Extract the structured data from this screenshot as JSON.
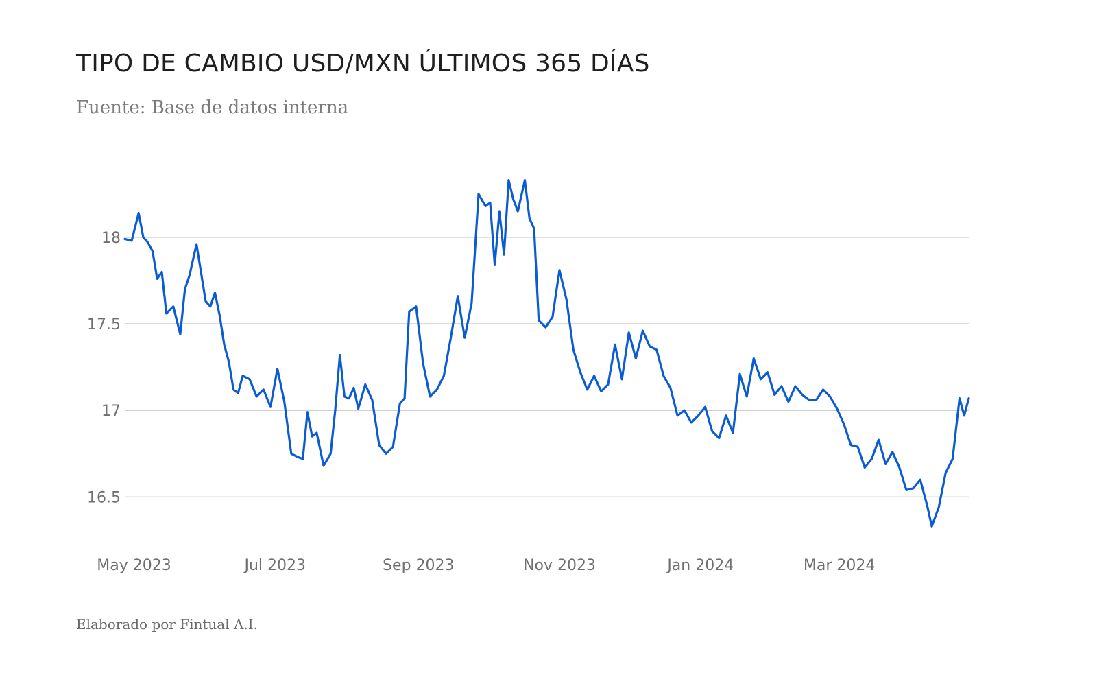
{
  "header": {
    "title": "TIPO DE CAMBIO USD/MXN ÚLTIMOS 365 DÍAS",
    "subtitle": "Fuente: Base de datos interna"
  },
  "footer": {
    "credit": "Elaborado por Fintual A.I."
  },
  "colors": {
    "line": "#0b5bd3",
    "grid": "#cfcfcf",
    "tick_text": "#6f6f6f"
  },
  "chart_data": {
    "type": "line",
    "title": "TIPO DE CAMBIO USD/MXN ÚLTIMOS 365 DÍAS",
    "xlabel": "",
    "ylabel": "",
    "grid": true,
    "ylim": [
      16.24,
      18.38
    ],
    "y_ticks": [
      16.5,
      17,
      17.5,
      18
    ],
    "y_tick_labels": [
      "16.5",
      "17",
      "17.5",
      "18"
    ],
    "x_range": [
      "2023-04-27",
      "2024-04-26"
    ],
    "x_ticks": [
      "2023-05-01",
      "2023-07-01",
      "2023-09-01",
      "2023-11-01",
      "2024-01-01",
      "2024-03-01"
    ],
    "x_tick_labels": [
      "May 2023",
      "Jul 2023",
      "Sep 2023",
      "Nov 2023",
      "Jan 2024",
      "Mar 2024"
    ],
    "series": [
      {
        "x": [
          "2023-04-27",
          "2023-04-30",
          "2023-05-03",
          "2023-05-05",
          "2023-05-07",
          "2023-05-09",
          "2023-05-11",
          "2023-05-13",
          "2023-05-15",
          "2023-05-18",
          "2023-05-21",
          "2023-05-23",
          "2023-05-25",
          "2023-05-28",
          "2023-06-01",
          "2023-06-03",
          "2023-06-05",
          "2023-06-07",
          "2023-06-09",
          "2023-06-11",
          "2023-06-13",
          "2023-06-15",
          "2023-06-17",
          "2023-06-20",
          "2023-06-23",
          "2023-06-26",
          "2023-06-29",
          "2023-07-02",
          "2023-07-05",
          "2023-07-08",
          "2023-07-11",
          "2023-07-13",
          "2023-07-15",
          "2023-07-17",
          "2023-07-19",
          "2023-07-22",
          "2023-07-25",
          "2023-07-27",
          "2023-07-29",
          "2023-07-31",
          "2023-08-02",
          "2023-08-04",
          "2023-08-06",
          "2023-08-09",
          "2023-08-12",
          "2023-08-15",
          "2023-08-18",
          "2023-08-21",
          "2023-08-24",
          "2023-08-26",
          "2023-08-28",
          "2023-08-31",
          "2023-09-03",
          "2023-09-06",
          "2023-09-09",
          "2023-09-12",
          "2023-09-15",
          "2023-09-18",
          "2023-09-21",
          "2023-09-24",
          "2023-09-27",
          "2023-09-30",
          "2023-10-02",
          "2023-10-04",
          "2023-10-06",
          "2023-10-08",
          "2023-10-10",
          "2023-10-12",
          "2023-10-14",
          "2023-10-17",
          "2023-10-19",
          "2023-10-21",
          "2023-10-23",
          "2023-10-26",
          "2023-10-29",
          "2023-11-01",
          "2023-11-04",
          "2023-11-07",
          "2023-11-10",
          "2023-11-13",
          "2023-11-16",
          "2023-11-19",
          "2023-11-22",
          "2023-11-25",
          "2023-11-28",
          "2023-12-01",
          "2023-12-04",
          "2023-12-07",
          "2023-12-10",
          "2023-12-13",
          "2023-12-16",
          "2023-12-19",
          "2023-12-22",
          "2023-12-25",
          "2023-12-28",
          "2023-12-31",
          "2024-01-03",
          "2024-01-06",
          "2024-01-09",
          "2024-01-12",
          "2024-01-15",
          "2024-01-18",
          "2024-01-21",
          "2024-01-24",
          "2024-01-27",
          "2024-01-30",
          "2024-02-02",
          "2024-02-05",
          "2024-02-08",
          "2024-02-11",
          "2024-02-14",
          "2024-02-17",
          "2024-02-20",
          "2024-02-23",
          "2024-02-26",
          "2024-02-29",
          "2024-03-03",
          "2024-03-06",
          "2024-03-09",
          "2024-03-12",
          "2024-03-15",
          "2024-03-18",
          "2024-03-21",
          "2024-03-24",
          "2024-03-27",
          "2024-03-30",
          "2024-04-02",
          "2024-04-05",
          "2024-04-08",
          "2024-04-10",
          "2024-04-13",
          "2024-04-16",
          "2024-04-19",
          "2024-04-22",
          "2024-04-24",
          "2024-04-26"
        ],
        "values": [
          17.99,
          17.98,
          18.14,
          18.0,
          17.97,
          17.92,
          17.76,
          17.8,
          17.56,
          17.6,
          17.44,
          17.7,
          17.78,
          17.96,
          17.63,
          17.6,
          17.68,
          17.55,
          17.38,
          17.28,
          17.12,
          17.1,
          17.2,
          17.18,
          17.08,
          17.12,
          17.02,
          17.24,
          17.05,
          16.75,
          16.73,
          16.72,
          16.99,
          16.85,
          16.87,
          16.68,
          16.75,
          17.0,
          17.32,
          17.08,
          17.07,
          17.13,
          17.01,
          17.15,
          17.06,
          16.8,
          16.75,
          16.79,
          17.04,
          17.07,
          17.57,
          17.6,
          17.27,
          17.08,
          17.12,
          17.2,
          17.42,
          17.66,
          17.42,
          17.62,
          18.25,
          18.18,
          18.2,
          17.84,
          18.15,
          17.9,
          18.33,
          18.22,
          18.15,
          18.33,
          18.11,
          18.05,
          17.52,
          17.48,
          17.54,
          17.81,
          17.64,
          17.35,
          17.22,
          17.12,
          17.2,
          17.11,
          17.15,
          17.38,
          17.18,
          17.45,
          17.3,
          17.46,
          17.37,
          17.35,
          17.2,
          17.13,
          16.97,
          17.0,
          16.93,
          16.97,
          17.02,
          16.88,
          16.84,
          16.97,
          16.87,
          17.21,
          17.08,
          17.3,
          17.18,
          17.22,
          17.09,
          17.14,
          17.05,
          17.14,
          17.09,
          17.06,
          17.06,
          17.12,
          17.08,
          17.01,
          16.92,
          16.8,
          16.79,
          16.67,
          16.72,
          16.83,
          16.69,
          16.76,
          16.67,
          16.54,
          16.55,
          16.6,
          16.45,
          16.33,
          16.44,
          16.64,
          16.72,
          17.07,
          16.97,
          17.07
        ]
      }
    ]
  }
}
